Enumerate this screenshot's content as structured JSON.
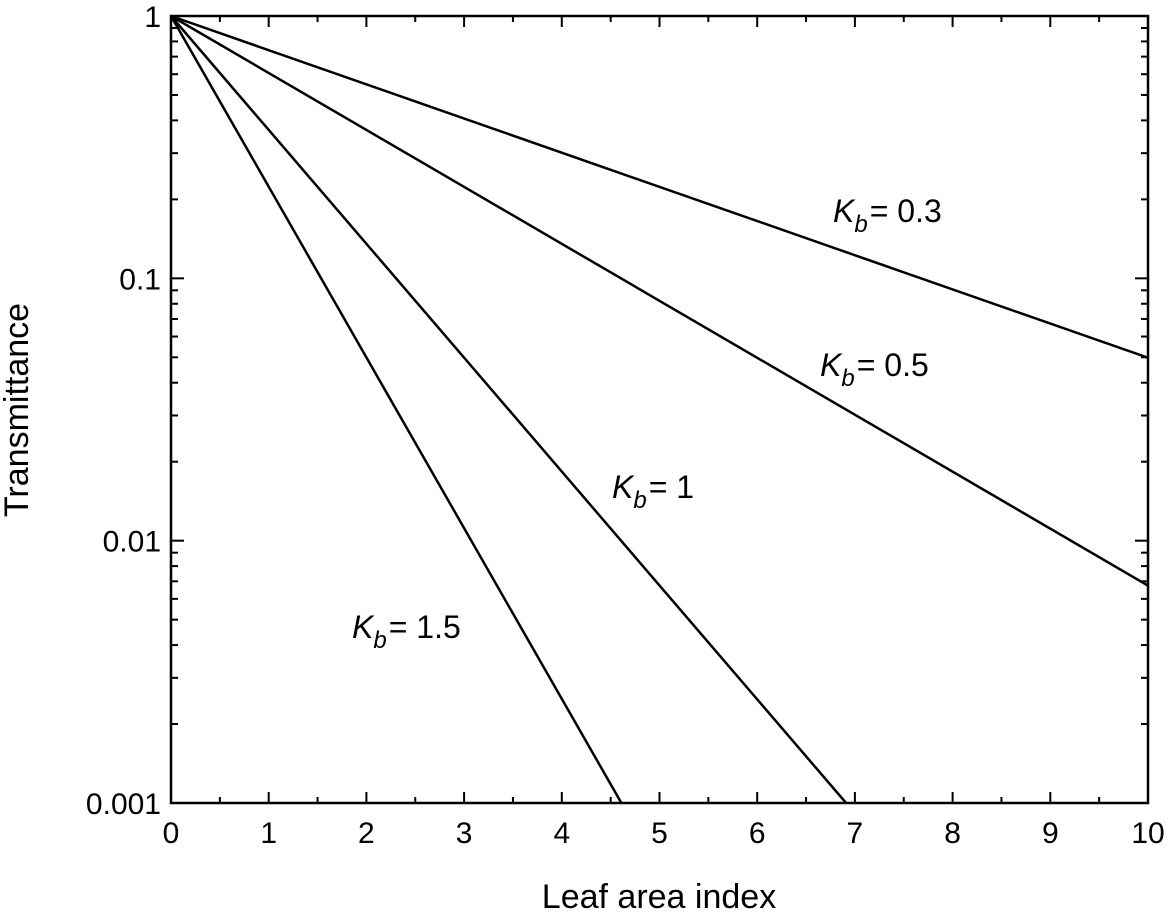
{
  "chart_data": {
    "type": "line",
    "title": "",
    "xlabel": "Leaf area index",
    "ylabel": "Transmittance",
    "xlim": [
      0,
      10
    ],
    "ylim": [
      0.001,
      1
    ],
    "yscale": "log",
    "grid": false,
    "x_ticks": [
      "0",
      "1",
      "2",
      "3",
      "4",
      "5",
      "6",
      "7",
      "8",
      "9",
      "10"
    ],
    "y_ticks": [
      "0.001",
      "0.01",
      "0.1",
      "1"
    ],
    "line_color": "#000000",
    "series": [
      {
        "kb": 0.3,
        "label_symbol": "K",
        "label_subscript": "b",
        "label_value": "= 0.3",
        "x": [
          0,
          10
        ],
        "y": [
          1,
          0.0498
        ]
      },
      {
        "kb": 0.5,
        "label_symbol": "K",
        "label_subscript": "b",
        "label_value": "= 0.5",
        "x": [
          0,
          10
        ],
        "y": [
          1,
          0.00674
        ]
      },
      {
        "kb": 1,
        "label_symbol": "K",
        "label_subscript": "b",
        "label_value": "= 1",
        "x": [
          0,
          6.91
        ],
        "y": [
          1,
          0.001
        ]
      },
      {
        "kb": 1.5,
        "label_symbol": "K",
        "label_subscript": "b",
        "label_value": "= 1.5",
        "x": [
          0,
          4.61
        ],
        "y": [
          1,
          0.001
        ]
      }
    ]
  }
}
